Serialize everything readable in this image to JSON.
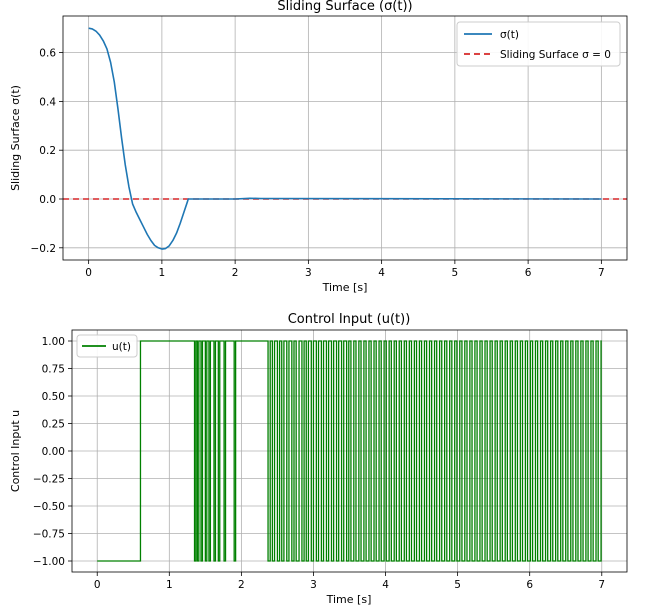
{
  "chart_data": [
    {
      "type": "line",
      "title": "Sliding Surface (σ(t))",
      "xlabel": "Time [s]",
      "ylabel": "Sliding Surface σ(t)",
      "xlim": [
        -0.35,
        7.35
      ],
      "ylim": [
        -0.25,
        0.75
      ],
      "xticks": [
        0,
        1,
        2,
        3,
        4,
        5,
        6,
        7
      ],
      "xtick_labels": [
        "0",
        "1",
        "2",
        "3",
        "4",
        "5",
        "6",
        "7"
      ],
      "yticks": [
        -0.2,
        0.0,
        0.2,
        0.4,
        0.6
      ],
      "ytick_labels": [
        "−0.2",
        "0.0",
        "0.2",
        "0.4",
        "0.6"
      ],
      "grid": true,
      "legend_position": "top-right",
      "series": [
        {
          "name": "σ(t)",
          "color": "#1f77b4",
          "style": "solid",
          "points": [
            [
              0,
              0.7
            ],
            [
              0.05,
              0.697
            ],
            [
              0.1,
              0.688
            ],
            [
              0.15,
              0.672
            ],
            [
              0.2,
              0.648
            ],
            [
              0.25,
              0.615
            ],
            [
              0.3,
              0.56
            ],
            [
              0.35,
              0.48
            ],
            [
              0.4,
              0.37
            ],
            [
              0.45,
              0.25
            ],
            [
              0.5,
              0.14
            ],
            [
              0.55,
              0.05
            ],
            [
              0.6,
              -0.02
            ],
            [
              0.65,
              -0.055
            ],
            [
              0.7,
              -0.085
            ],
            [
              0.75,
              -0.115
            ],
            [
              0.8,
              -0.145
            ],
            [
              0.85,
              -0.17
            ],
            [
              0.9,
              -0.19
            ],
            [
              0.95,
              -0.2
            ],
            [
              1.0,
              -0.205
            ],
            [
              1.05,
              -0.203
            ],
            [
              1.1,
              -0.192
            ],
            [
              1.15,
              -0.17
            ],
            [
              1.2,
              -0.14
            ],
            [
              1.25,
              -0.1
            ],
            [
              1.3,
              -0.055
            ],
            [
              1.35,
              -0.01
            ],
            [
              1.36,
              0.0
            ],
            [
              2.0,
              0.0
            ],
            [
              2.2,
              0.003
            ],
            [
              2.35,
              0.002
            ],
            [
              7.0,
              0.0
            ]
          ]
        },
        {
          "name": "Sliding Surface σ = 0",
          "color": "#d62728",
          "style": "dashed",
          "y": 0
        }
      ]
    },
    {
      "type": "line",
      "title": "Control Input (u(t))",
      "xlabel": "Time [s]",
      "ylabel": "Control Input u",
      "xlim": [
        -0.35,
        7.35
      ],
      "ylim": [
        -1.1,
        1.1
      ],
      "xticks": [
        0,
        1,
        2,
        3,
        4,
        5,
        6,
        7
      ],
      "xtick_labels": [
        "0",
        "1",
        "2",
        "3",
        "4",
        "5",
        "6",
        "7"
      ],
      "yticks": [
        -1.0,
        -0.75,
        -0.5,
        -0.25,
        0.0,
        0.25,
        0.5,
        0.75,
        1.0
      ],
      "ytick_labels": [
        "−1.00",
        "−0.75",
        "−0.50",
        "−0.25",
        "0.00",
        "0.25",
        "0.50",
        "0.75",
        "1.00"
      ],
      "grid": true,
      "legend_position": "top-left",
      "series": [
        {
          "name": "u(t)",
          "color": "#008000",
          "style": "step",
          "switch_times": [
            0.6,
            1.35,
            1.37,
            1.39,
            1.41,
            1.44,
            1.46,
            1.5,
            1.52,
            1.55,
            1.57,
            1.62,
            1.64,
            1.68,
            1.7,
            1.76,
            1.78,
            1.9,
            1.92,
            2.37,
            2.4,
            2.43,
            2.46,
            2.5,
            2.53,
            2.56,
            2.59,
            2.63,
            2.66,
            2.7,
            2.73,
            2.76,
            2.8,
            2.84,
            2.87,
            2.9,
            2.93,
            2.97,
            3.0,
            3.04,
            3.07,
            3.11,
            3.14,
            3.18,
            3.21,
            3.25,
            3.28,
            3.32,
            3.35,
            3.39,
            3.42,
            3.46,
            3.49,
            3.52,
            3.56,
            3.59,
            3.63,
            3.66,
            3.7,
            3.73,
            3.77,
            3.8,
            3.84,
            3.87,
            3.91,
            3.94,
            3.98,
            4.01,
            4.05,
            4.08,
            4.12,
            4.15,
            4.19,
            4.22,
            4.26,
            4.29,
            4.33,
            4.36,
            4.4,
            4.43,
            4.47,
            4.5,
            4.54,
            4.57,
            4.61,
            4.64,
            4.68,
            4.71,
            4.75,
            4.78,
            4.82,
            4.85,
            4.89,
            4.92,
            4.96,
            4.99,
            5.03,
            5.06,
            5.1,
            5.13,
            5.17,
            5.2,
            5.24,
            5.27,
            5.31,
            5.34,
            5.38,
            5.41,
            5.45,
            5.48,
            5.52,
            5.55,
            5.59,
            5.62,
            5.66,
            5.69,
            5.73,
            5.76,
            5.8,
            5.83,
            5.87,
            5.9,
            5.94,
            5.97,
            6.01,
            6.04,
            6.08,
            6.11,
            6.15,
            6.18,
            6.22,
            6.25,
            6.29,
            6.32,
            6.36,
            6.39,
            6.43,
            6.46,
            6.5,
            6.53,
            6.57,
            6.6,
            6.64,
            6.67,
            6.71,
            6.74,
            6.78,
            6.81,
            6.85,
            6.88,
            6.92,
            6.95,
            6.99
          ],
          "initial_value": -1,
          "t_end": 7.0
        }
      ]
    }
  ]
}
